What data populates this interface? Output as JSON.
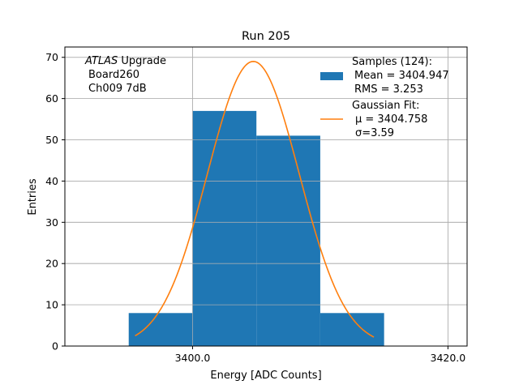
{
  "chart_data": {
    "type": "bar",
    "title": "Run 205",
    "xlabel": "Energy [ADC Counts]",
    "ylabel": "Entries",
    "xlim": [
      3390,
      3421.5
    ],
    "ylim": [
      0,
      72.5
    ],
    "x_ticks": [
      3400,
      3420
    ],
    "x_tick_labels": [
      "3400.0",
      "3420.0"
    ],
    "y_ticks": [
      0,
      10,
      20,
      30,
      40,
      50,
      60,
      70
    ],
    "y_tick_labels": [
      "0",
      "10",
      "20",
      "30",
      "40",
      "50",
      "60",
      "70"
    ],
    "grid": true,
    "legend_position": "top-right",
    "colors": {
      "histogram": "#1f77b4",
      "fit": "#ff7f0e",
      "grid": "#b0b0b0"
    },
    "annotation": {
      "experiment": "ATLAS",
      "experiment_suffix": " Upgrade",
      "board": "Board260",
      "channel": "Ch009 7dB"
    },
    "histogram": {
      "name": "Samples (124):",
      "bins": [
        {
          "x0": 3395,
          "x1": 3400,
          "count": 8
        },
        {
          "x0": 3400,
          "x1": 3405,
          "count": 57
        },
        {
          "x0": 3405,
          "x1": 3410,
          "count": 51
        },
        {
          "x0": 3410,
          "x1": 3415,
          "count": 8
        }
      ],
      "stats": [
        "Mean = 3404.947",
        "RMS = 3.253"
      ]
    },
    "fit": {
      "name": "Gaussian Fit:",
      "mu": 3404.758,
      "sigma": 3.59,
      "amplitude": 69,
      "x_range": [
        3395.5,
        3414.2
      ],
      "mu_label": "μ = 3404.758",
      "sigma_label": "σ=3.59"
    }
  }
}
